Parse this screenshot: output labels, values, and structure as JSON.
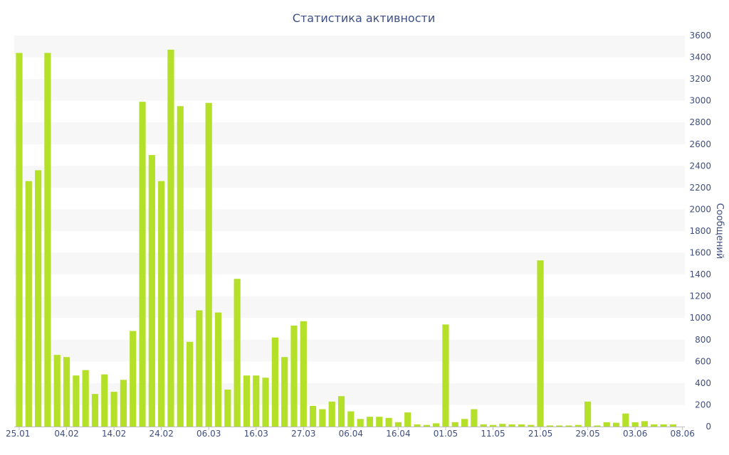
{
  "colors": {
    "bar": "#b4e02a",
    "band": "#f7f7f7",
    "text": "#3e4f82",
    "axis": "#bfbfbf"
  },
  "chart_data": {
    "type": "bar",
    "title": "Статистика активности",
    "ylabel": "Сообщений",
    "xlabel": "",
    "ylim": [
      0,
      3600
    ],
    "y_ticks": [
      0,
      200,
      400,
      600,
      800,
      1000,
      1200,
      1400,
      1600,
      1800,
      2000,
      2200,
      2400,
      2600,
      2800,
      3000,
      3200,
      3400,
      3600
    ],
    "y_axis_position": "right",
    "grid": "alternating horizontal bands",
    "x_tick_labels": [
      {
        "index": 0,
        "label": "25.01"
      },
      {
        "index": 5,
        "label": "04.02"
      },
      {
        "index": 10,
        "label": "14.02"
      },
      {
        "index": 15,
        "label": "24.02"
      },
      {
        "index": 20,
        "label": "06.03"
      },
      {
        "index": 25,
        "label": "16.03"
      },
      {
        "index": 30,
        "label": "27.03"
      },
      {
        "index": 35,
        "label": "06.04"
      },
      {
        "index": 40,
        "label": "16.04"
      },
      {
        "index": 45,
        "label": "01.05"
      },
      {
        "index": 50,
        "label": "11.05"
      },
      {
        "index": 55,
        "label": "21.05"
      },
      {
        "index": 60,
        "label": "29.05"
      },
      {
        "index": 65,
        "label": "03.06"
      },
      {
        "index": 70,
        "label": "08.06"
      }
    ],
    "values": [
      3440,
      2260,
      2360,
      3440,
      660,
      640,
      470,
      520,
      300,
      480,
      320,
      430,
      880,
      2990,
      2500,
      2260,
      3470,
      2950,
      780,
      1070,
      2980,
      1050,
      340,
      1360,
      470,
      470,
      450,
      820,
      640,
      930,
      970,
      190,
      160,
      230,
      280,
      140,
      70,
      90,
      90,
      80,
      40,
      130,
      20,
      15,
      30,
      940,
      40,
      70,
      160,
      20,
      15,
      25,
      20,
      20,
      15,
      1530,
      10,
      10,
      10,
      15,
      230,
      10,
      40,
      35,
      120,
      40,
      50,
      20,
      20,
      20
    ]
  }
}
